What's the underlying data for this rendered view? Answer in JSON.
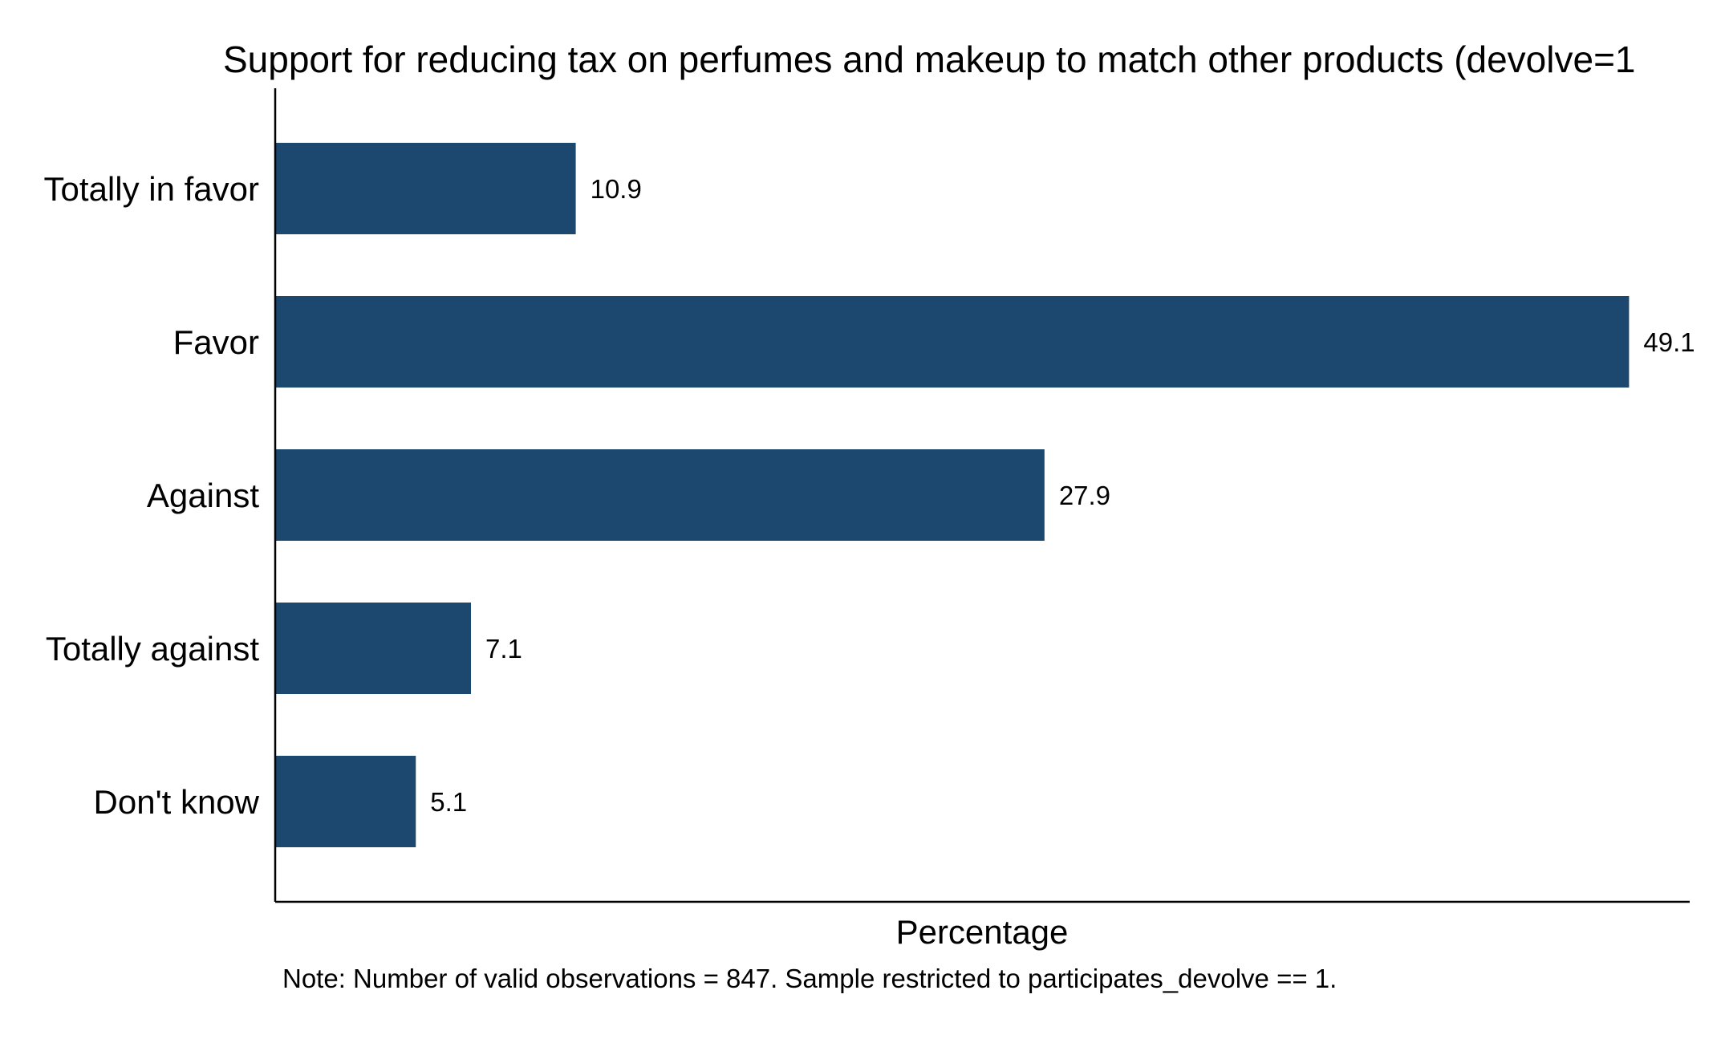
{
  "chart_data": {
    "type": "bar",
    "orientation": "horizontal",
    "title": "Support for reducing tax on perfumes and makeup to match other products (devolve=1",
    "xlabel": "Percentage",
    "ylabel": "",
    "categories": [
      "Totally in favor",
      "Favor",
      "Against",
      "Totally against",
      "Don't know"
    ],
    "values": [
      10.9,
      49.1,
      27.9,
      7.1,
      5.1
    ],
    "data_labels": [
      "10.9",
      "49.1",
      "27.9",
      "7.1",
      "5.1"
    ],
    "xlim": [
      0,
      51.3
    ],
    "grid": false,
    "legend": "none",
    "note": "Note: Number of valid observations = 847. Sample restricted to participates_devolve == 1.",
    "bar_color": "#1c4870",
    "text_color": "#000000"
  }
}
